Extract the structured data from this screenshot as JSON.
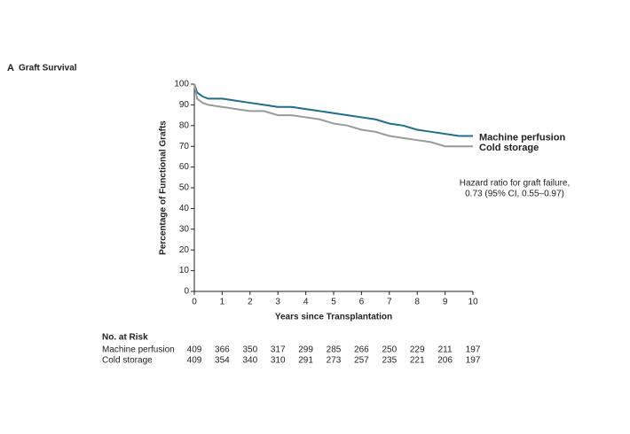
{
  "chart_data": {
    "type": "line",
    "panel": "A",
    "title": "Graft Survival",
    "y_label": "Percentage of Functional Grafts",
    "x_label": "Years since Transplantation",
    "x": [
      0,
      0.1,
      0.3,
      0.5,
      1,
      1.5,
      2,
      2.5,
      3,
      3.5,
      4,
      4.5,
      5,
      5.5,
      6,
      6.5,
      7,
      7.5,
      8,
      8.5,
      9,
      9.5,
      10
    ],
    "series": [
      {
        "name": "Machine perfusion",
        "color": "#1f6e8c",
        "values": [
          100,
          96,
          94,
          93,
          93,
          92,
          91,
          90,
          89,
          89,
          88,
          87,
          86,
          85,
          84,
          83,
          81,
          80,
          78,
          77,
          76,
          75,
          75
        ]
      },
      {
        "name": "Cold storage",
        "color": "#9a9a9a",
        "values": [
          100,
          93,
          91,
          90,
          89,
          88,
          87,
          87,
          85,
          85,
          84,
          83,
          81,
          80,
          78,
          77,
          75,
          74,
          73,
          72,
          70,
          70,
          70
        ]
      }
    ],
    "xlim": [
      0,
      10
    ],
    "xticks": [
      0,
      1,
      2,
      3,
      4,
      5,
      6,
      7,
      8,
      9,
      10
    ],
    "ylim": [
      0,
      100
    ],
    "yticks": [
      0,
      10,
      20,
      30,
      40,
      50,
      60,
      70,
      80,
      90,
      100
    ],
    "annotation": [
      "Hazard ratio for graft failure,",
      "0.73 (95% CI, 0.55–0.97)"
    ],
    "risk_table": {
      "title": "No. at Risk",
      "rows": [
        {
          "name": "Machine perfusion",
          "values": [
            409,
            366,
            350,
            317,
            299,
            285,
            266,
            250,
            229,
            211,
            197
          ]
        },
        {
          "name": "Cold storage",
          "values": [
            409,
            354,
            340,
            310,
            291,
            273,
            257,
            235,
            221,
            206,
            197
          ]
        }
      ]
    }
  }
}
